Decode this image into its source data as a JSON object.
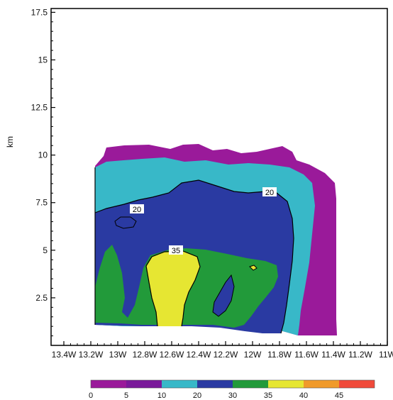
{
  "chart_data": {
    "type": "contour",
    "title": "",
    "xlabel": "",
    "ylabel": "km",
    "x_tick_labels": [
      "13.4W",
      "13.2W",
      "13W",
      "12.8W",
      "12.6W",
      "12.4W",
      "12.2W",
      "12W",
      "11.8W",
      "11.6W",
      "11.4W",
      "11.2W",
      "11W"
    ],
    "y_ticks": [
      2.5,
      5,
      7.5,
      10,
      12.5,
      15,
      17.5
    ],
    "y_tick_labels": [
      "2.5",
      "5",
      "7.5",
      "10",
      "12.5",
      "15",
      "17.5"
    ],
    "ylim": [
      0,
      17.7
    ],
    "contour_labels": [
      "20",
      "20",
      "35"
    ],
    "colorbar": {
      "levels": [
        "0",
        "5",
        "10",
        "20",
        "30",
        "35",
        "40",
        "45"
      ],
      "colors": [
        "#9a1a9a",
        "#7a1a9a",
        "#38b8c8",
        "#2a3aa2",
        "#229a3a",
        "#e6e632",
        "#f09a2a",
        "#f04a3a"
      ]
    },
    "colors": {
      "magenta": "#9a1a9a",
      "cyan": "#38b8c8",
      "blue": "#2a3aa2",
      "green": "#229a3a",
      "yellow": "#e6e632"
    }
  }
}
